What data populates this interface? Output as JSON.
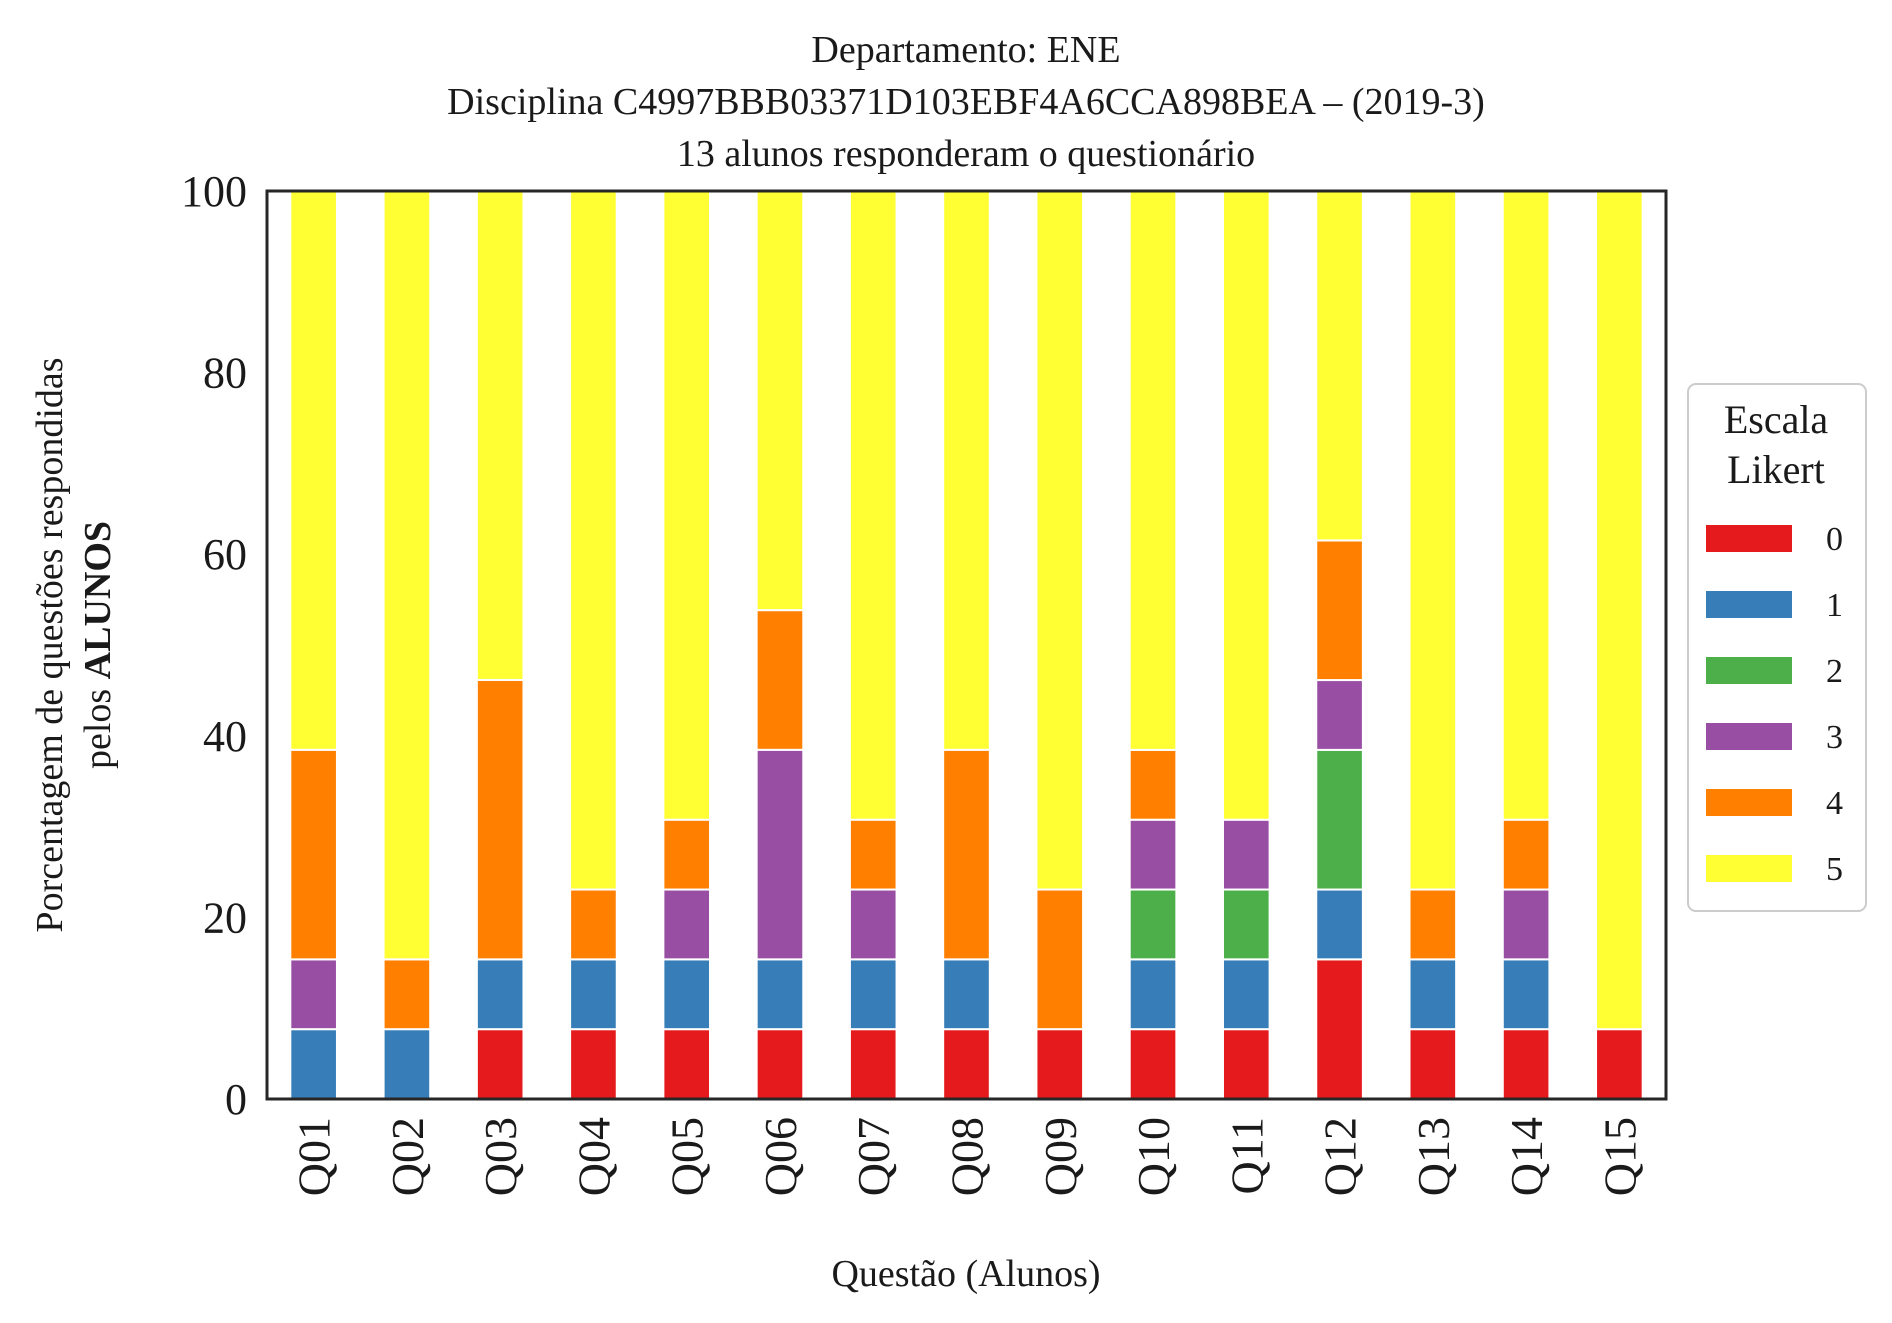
{
  "chart_data": {
    "type": "bar",
    "stacked": true,
    "title": [
      "Departamento: ENE",
      "Disciplina C4997BBB03371D103EBF4A6CCA898BEA – (2019-3)",
      "13 alunos responderam o questionário"
    ],
    "xlabel": "Questão (Alunos)",
    "ylabel_line1": "Porcentagem de questões respondidas",
    "ylabel_line2_prefix": "pelos ",
    "ylabel_line2_bold": "ALUNOS",
    "ylim": [
      0,
      100
    ],
    "yticks": [
      0,
      20,
      40,
      60,
      80,
      100
    ],
    "grid": false,
    "categories": [
      "Q01",
      "Q02",
      "Q03",
      "Q04",
      "Q05",
      "Q06",
      "Q07",
      "Q08",
      "Q09",
      "Q10",
      "Q11",
      "Q12",
      "Q13",
      "Q14",
      "Q15"
    ],
    "legend_title": [
      "Escala",
      "Likert"
    ],
    "legend_position": "center-right outside",
    "series": [
      {
        "name": "0",
        "color": "#e41a1c",
        "values": [
          0,
          0,
          7.69,
          7.69,
          7.69,
          7.69,
          7.69,
          7.69,
          7.69,
          7.69,
          7.69,
          15.38,
          7.69,
          7.69,
          7.69
        ]
      },
      {
        "name": "1",
        "color": "#377eb8",
        "values": [
          7.69,
          7.69,
          7.69,
          7.69,
          7.69,
          7.69,
          7.69,
          7.69,
          0,
          7.69,
          7.69,
          7.69,
          7.69,
          7.69,
          0
        ]
      },
      {
        "name": "2",
        "color": "#4daf4a",
        "values": [
          0,
          0,
          0,
          0,
          0,
          0,
          0,
          0,
          0,
          7.69,
          7.69,
          15.38,
          0,
          0,
          0
        ]
      },
      {
        "name": "3",
        "color": "#984ea3",
        "values": [
          7.69,
          0,
          0,
          0,
          7.69,
          23.08,
          7.69,
          0,
          0,
          7.69,
          7.69,
          7.69,
          0,
          7.69,
          0
        ]
      },
      {
        "name": "4",
        "color": "#ff7f00",
        "values": [
          23.08,
          7.69,
          30.77,
          7.69,
          7.69,
          15.38,
          7.69,
          23.08,
          15.38,
          7.69,
          0,
          15.38,
          7.69,
          7.69,
          0
        ]
      },
      {
        "name": "5",
        "color": "#ffff33",
        "values": [
          61.54,
          84.62,
          53.85,
          76.92,
          69.23,
          46.15,
          69.23,
          61.54,
          76.92,
          61.54,
          69.23,
          38.46,
          76.92,
          69.23,
          92.31
        ]
      }
    ]
  }
}
